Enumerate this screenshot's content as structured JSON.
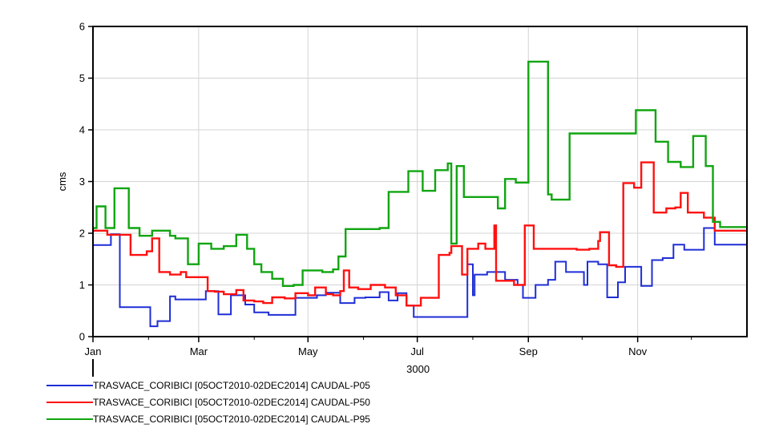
{
  "chart_data": {
    "type": "line",
    "step": true,
    "ylabel": "cms",
    "xlabel_sub": "3000",
    "ylim": [
      0,
      6
    ],
    "yticks": [
      "0",
      "1",
      "2",
      "3",
      "4",
      "5",
      "6"
    ],
    "xlim": [
      0,
      365
    ],
    "xticks": [
      {
        "label": "Jan",
        "day": 0
      },
      {
        "label": "Mar",
        "day": 59
      },
      {
        "label": "May",
        "day": 120
      },
      {
        "label": "Jul",
        "day": 181
      },
      {
        "label": "Sep",
        "day": 243
      },
      {
        "label": "Nov",
        "day": 304
      }
    ],
    "grid": true,
    "legend_position": "bottom-left",
    "series": [
      {
        "name": "TRASVACE_CORIBICI [05OCT2010-02DEC2014] CAUDAL-P05",
        "color": "#1f2ed6",
        "points": [
          [
            0,
            1.77
          ],
          [
            10,
            1.98
          ],
          [
            15,
            0.57
          ],
          [
            31,
            0.57
          ],
          [
            32,
            0.2
          ],
          [
            36,
            0.3
          ],
          [
            43,
            0.78
          ],
          [
            46,
            0.72
          ],
          [
            59,
            0.72
          ],
          [
            63,
            0.88
          ],
          [
            70,
            0.43
          ],
          [
            77,
            0.8
          ],
          [
            85,
            0.62
          ],
          [
            90,
            0.47
          ],
          [
            98,
            0.42
          ],
          [
            107,
            0.42
          ],
          [
            113,
            0.75
          ],
          [
            125,
            0.8
          ],
          [
            130,
            0.85
          ],
          [
            138,
            0.65
          ],
          [
            146,
            0.75
          ],
          [
            152,
            0.76
          ],
          [
            160,
            0.86
          ],
          [
            165,
            0.7
          ],
          [
            170,
            0.84
          ],
          [
            175,
            0.6
          ],
          [
            179,
            0.38
          ],
          [
            198,
            0.38
          ],
          [
            206,
            0.38
          ],
          [
            209,
            1.4
          ],
          [
            212,
            0.8
          ],
          [
            213,
            1.2
          ],
          [
            220,
            1.25
          ],
          [
            230,
            1.1
          ],
          [
            237,
            1.0
          ],
          [
            240,
            0.75
          ],
          [
            247,
            1.0
          ],
          [
            254,
            1.1
          ],
          [
            258,
            1.45
          ],
          [
            264,
            1.25
          ],
          [
            274,
            1.0
          ],
          [
            276,
            1.45
          ],
          [
            282,
            1.4
          ],
          [
            287,
            0.76
          ],
          [
            293,
            1.05
          ],
          [
            297,
            1.35
          ],
          [
            303,
            1.35
          ],
          [
            306,
            0.98
          ],
          [
            312,
            1.48
          ],
          [
            318,
            1.52
          ],
          [
            324,
            1.78
          ],
          [
            330,
            1.68
          ],
          [
            341,
            2.1
          ],
          [
            347,
            1.78
          ],
          [
            365,
            1.78
          ]
        ]
      },
      {
        "name": "TRASVACE_CORIBICI [05OCT2010-02DEC2014] CAUDAL-P50",
        "color": "#ff1010",
        "points": [
          [
            0,
            2.05
          ],
          [
            8,
            1.97
          ],
          [
            15,
            1.97
          ],
          [
            21,
            1.58
          ],
          [
            30,
            1.65
          ],
          [
            33,
            1.9
          ],
          [
            37,
            1.25
          ],
          [
            43,
            1.2
          ],
          [
            49,
            1.25
          ],
          [
            52,
            1.15
          ],
          [
            58,
            1.15
          ],
          [
            64,
            0.88
          ],
          [
            68,
            0.87
          ],
          [
            73,
            0.82
          ],
          [
            80,
            0.9
          ],
          [
            84,
            0.7
          ],
          [
            90,
            0.68
          ],
          [
            95,
            0.65
          ],
          [
            100,
            0.76
          ],
          [
            107,
            0.74
          ],
          [
            113,
            0.84
          ],
          [
            120,
            0.8
          ],
          [
            124,
            0.95
          ],
          [
            130,
            0.82
          ],
          [
            134,
            0.8
          ],
          [
            138,
            0.88
          ],
          [
            140,
            1.28
          ],
          [
            143,
            0.95
          ],
          [
            148,
            0.92
          ],
          [
            155,
            1.0
          ],
          [
            163,
            0.95
          ],
          [
            169,
            0.8
          ],
          [
            175,
            0.6
          ],
          [
            183,
            0.75
          ],
          [
            187,
            0.75
          ],
          [
            193,
            1.58
          ],
          [
            199,
            1.62
          ],
          [
            200,
            1.75
          ],
          [
            206,
            1.2
          ],
          [
            209,
            1.7
          ],
          [
            215,
            1.8
          ],
          [
            219,
            1.7
          ],
          [
            224,
            2.15
          ],
          [
            225,
            1.08
          ],
          [
            235,
            1.0
          ],
          [
            241,
            2.15
          ],
          [
            246,
            1.7
          ],
          [
            262,
            1.7
          ],
          [
            270,
            1.68
          ],
          [
            277,
            1.7
          ],
          [
            282,
            1.85
          ],
          [
            283,
            2.02
          ],
          [
            288,
            1.38
          ],
          [
            292,
            1.35
          ],
          [
            296,
            2.97
          ],
          [
            302,
            2.88
          ],
          [
            306,
            3.37
          ],
          [
            313,
            2.4
          ],
          [
            320,
            2.48
          ],
          [
            325,
            2.5
          ],
          [
            328,
            2.78
          ],
          [
            332,
            2.4
          ],
          [
            341,
            2.3
          ],
          [
            347,
            2.05
          ],
          [
            355,
            2.05
          ],
          [
            365,
            2.05
          ]
        ]
      },
      {
        "name": "TRASVACE_CORIBICI [05OCT2010-02DEC2014] CAUDAL-P95",
        "color": "#11a511",
        "points": [
          [
            0,
            2.1
          ],
          [
            2,
            2.52
          ],
          [
            7,
            2.1
          ],
          [
            12,
            2.87
          ],
          [
            20,
            2.1
          ],
          [
            26,
            1.95
          ],
          [
            33,
            2.05
          ],
          [
            43,
            1.95
          ],
          [
            46,
            1.9
          ],
          [
            53,
            1.4
          ],
          [
            59,
            1.8
          ],
          [
            66,
            1.7
          ],
          [
            73,
            1.75
          ],
          [
            80,
            1.97
          ],
          [
            86,
            1.7
          ],
          [
            90,
            1.4
          ],
          [
            94,
            1.25
          ],
          [
            100,
            1.12
          ],
          [
            106,
            0.98
          ],
          [
            112,
            1.0
          ],
          [
            117,
            1.28
          ],
          [
            128,
            1.25
          ],
          [
            134,
            1.3
          ],
          [
            137,
            1.55
          ],
          [
            141,
            2.08
          ],
          [
            160,
            2.1
          ],
          [
            165,
            2.8
          ],
          [
            176,
            3.2
          ],
          [
            184,
            2.82
          ],
          [
            191,
            3.22
          ],
          [
            198,
            3.35
          ],
          [
            200,
            1.8
          ],
          [
            203,
            3.3
          ],
          [
            207,
            2.7
          ],
          [
            220,
            2.7
          ],
          [
            226,
            2.48
          ],
          [
            230,
            3.05
          ],
          [
            236,
            2.98
          ],
          [
            242,
            2.98
          ],
          [
            243,
            5.32
          ],
          [
            254,
            2.75
          ],
          [
            256,
            2.65
          ],
          [
            266,
            3.93
          ],
          [
            302,
            3.93
          ],
          [
            303,
            4.38
          ],
          [
            314,
            3.77
          ],
          [
            321,
            3.38
          ],
          [
            328,
            3.28
          ],
          [
            335,
            3.88
          ],
          [
            342,
            3.3
          ],
          [
            346,
            2.22
          ],
          [
            350,
            2.12
          ],
          [
            365,
            2.12
          ]
        ]
      }
    ]
  }
}
